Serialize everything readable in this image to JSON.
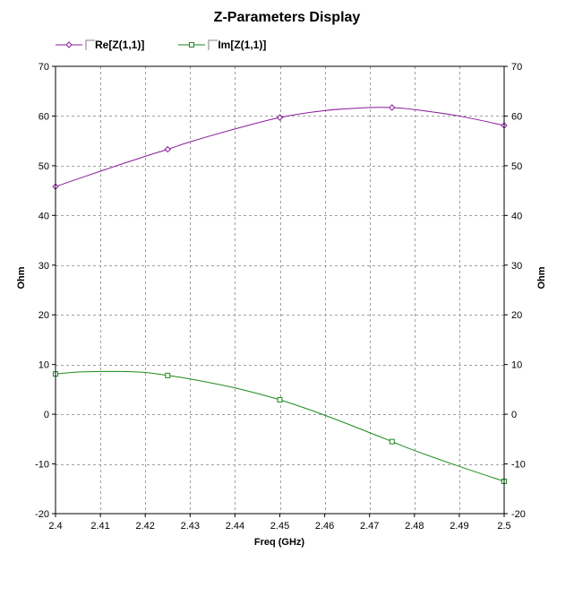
{
  "chart_data": {
    "type": "line",
    "title": "Z-Parameters Display",
    "xlabel": "Freq (GHz)",
    "ylabel_left": "Ohm",
    "ylabel_right": "Ohm",
    "xlim": [
      2.4,
      2.5
    ],
    "ylim": [
      -20,
      70
    ],
    "x_ticks": [
      2.4,
      2.41,
      2.42,
      2.43,
      2.44,
      2.45,
      2.46,
      2.47,
      2.48,
      2.49,
      2.5
    ],
    "x_tick_labels": [
      "2.4",
      "2.41",
      "2.42",
      "2.43",
      "2.44",
      "2.45",
      "2.46",
      "2.47",
      "2.48",
      "2.49",
      "2.5"
    ],
    "y_ticks": [
      -20,
      -10,
      0,
      10,
      20,
      30,
      40,
      50,
      60,
      70
    ],
    "y_tick_labels": [
      "-20",
      "-10",
      "0",
      "10",
      "20",
      "30",
      "40",
      "50",
      "60",
      "70"
    ],
    "grid": true,
    "legend_position": "top-left",
    "series": [
      {
        "name": "Re[Z(1,1)]",
        "color": "#8b1a9c",
        "marker": "diamond",
        "markers_x": [
          2.4,
          2.425,
          2.45,
          2.475,
          2.5
        ],
        "markers_y": [
          45.8,
          53.3,
          59.7,
          61.7,
          58.1
        ],
        "curve_x": [
          2.4,
          2.41,
          2.42,
          2.425,
          2.43,
          2.44,
          2.45,
          2.46,
          2.47,
          2.475,
          2.48,
          2.49,
          2.5
        ],
        "curve_y": [
          45.8,
          48.9,
          51.9,
          53.3,
          54.8,
          57.4,
          59.7,
          61.1,
          61.7,
          61.7,
          61.3,
          60.0,
          58.1
        ]
      },
      {
        "name": "Im[Z(1,1)]",
        "color": "#1a8a1a",
        "marker": "square",
        "markers_x": [
          2.4,
          2.425,
          2.45,
          2.475,
          2.5
        ],
        "markers_y": [
          8.1,
          7.8,
          2.9,
          -5.5,
          -13.5
        ],
        "curve_x": [
          2.4,
          2.405,
          2.41,
          2.415,
          2.42,
          2.425,
          2.43,
          2.44,
          2.45,
          2.46,
          2.47,
          2.475,
          2.48,
          2.49,
          2.5
        ],
        "curve_y": [
          8.1,
          8.5,
          8.6,
          8.6,
          8.4,
          7.8,
          7.1,
          5.3,
          2.9,
          -0.2,
          -3.7,
          -5.5,
          -7.3,
          -10.5,
          -13.5
        ]
      }
    ]
  }
}
